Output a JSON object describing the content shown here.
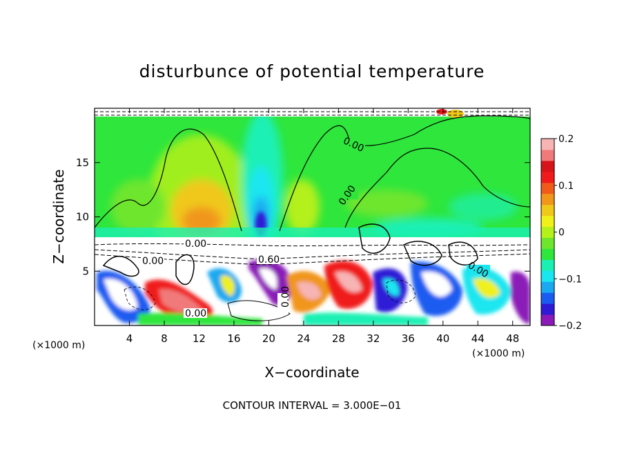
{
  "chart_data": {
    "type": "heatmap",
    "title": "disturbunce of potential temperature",
    "xlabel": "X−coordinate",
    "ylabel": "Z−coordinate",
    "x_unit": "(×1000 m)",
    "z_unit": "(×1000 m)",
    "xlim": [
      0,
      50
    ],
    "ylim": [
      0,
      20
    ],
    "x_ticks": [
      4,
      8,
      12,
      16,
      20,
      24,
      28,
      32,
      36,
      40,
      44,
      48
    ],
    "y_ticks": [
      5,
      10,
      15
    ],
    "colorbar": {
      "range": [
        -0.2,
        0.2
      ],
      "ticks": [
        "0.2",
        "0.1",
        "0",
        "−0.1",
        "−0.2"
      ],
      "colors": [
        "#8b1ab8",
        "#2f1ad6",
        "#1a5cf0",
        "#1aa8f0",
        "#1ae6f0",
        "#1af0b4",
        "#2ee63c",
        "#6ee62e",
        "#b4f01a",
        "#f0f01a",
        "#f0c81a",
        "#f0961a",
        "#f05a1a",
        "#f01a1a",
        "#d6141a",
        "#f07a7a",
        "#f7b4b4"
      ]
    },
    "contour_labels": [
      "0.00",
      "0.00",
      "0.00",
      "0.00",
      "0.60",
      "0.00",
      "0.00",
      "0.00"
    ],
    "annotation": "CONTOUR INTERVAL = 3.000E−01"
  }
}
